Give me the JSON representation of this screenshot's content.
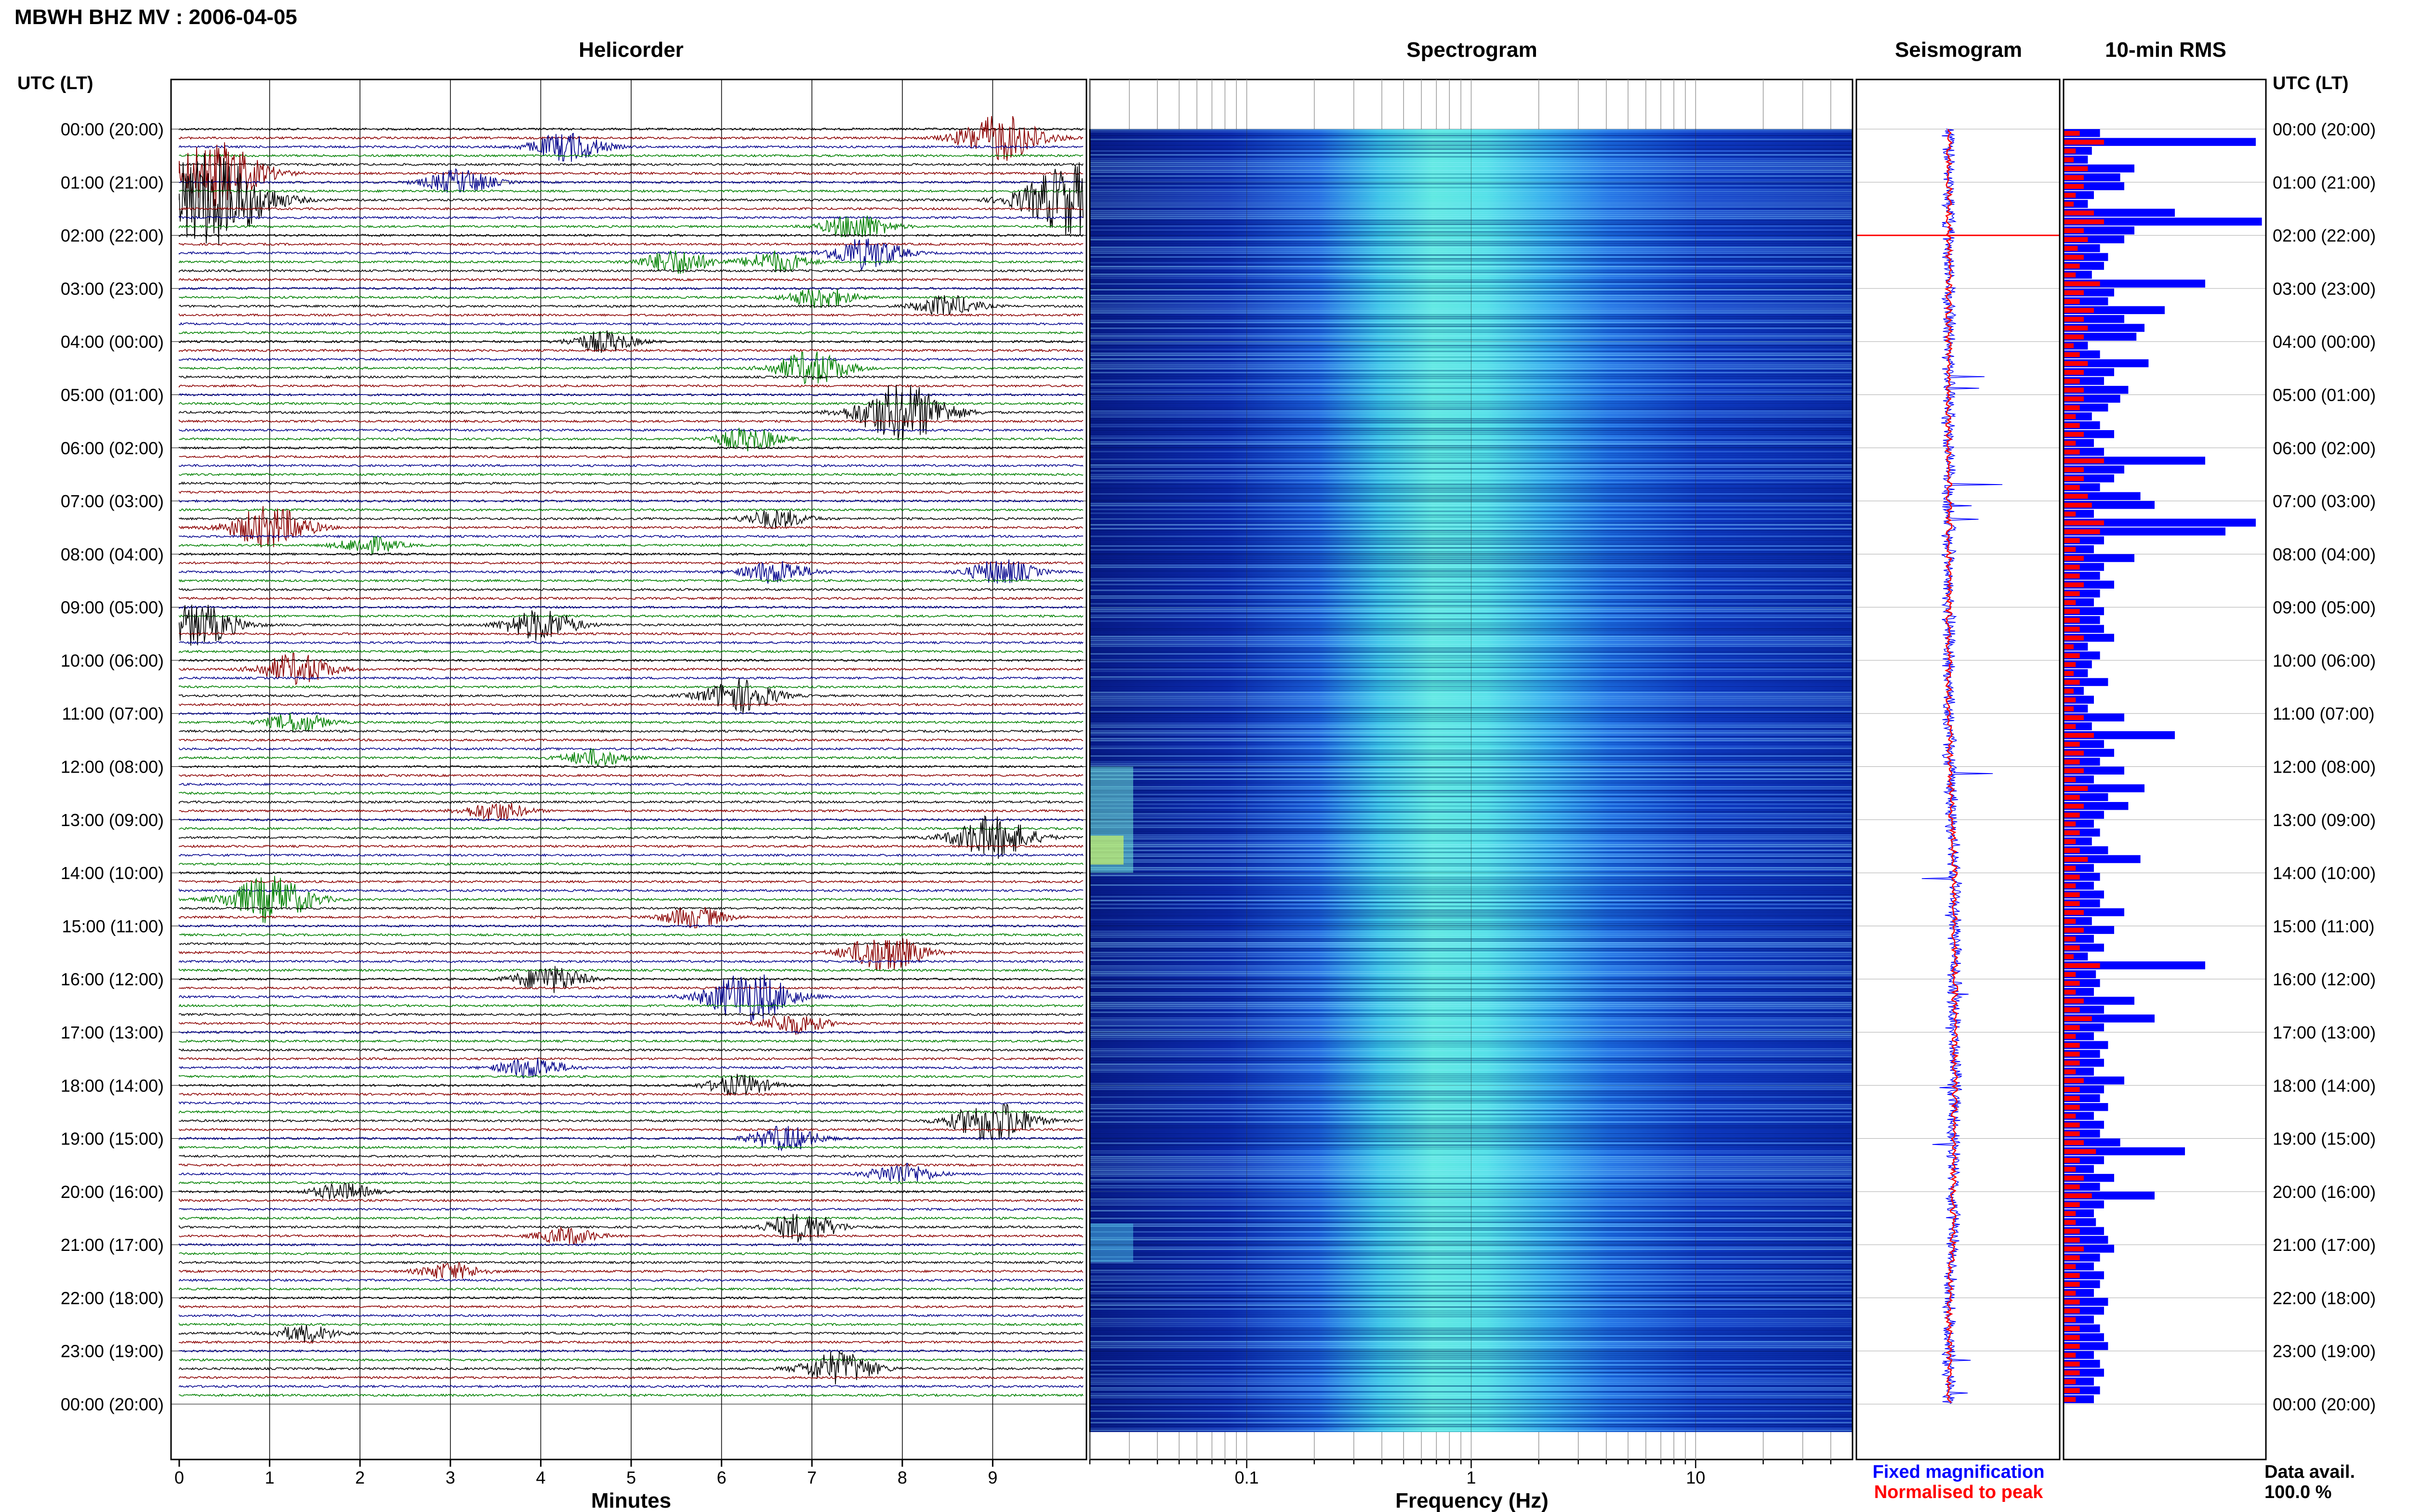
{
  "header": {
    "title": "MBWH BHZ MV : 2006-04-05",
    "utc_label_left": "UTC (LT)",
    "utc_label_right": "UTC (LT)"
  },
  "panels": {
    "helicorder_title": "Helicorder",
    "spectrogram_title": "Spectrogram",
    "seismogram_title": "Seismogram",
    "rms_title": "10-min RMS"
  },
  "footer": {
    "minutes_label": "Minutes",
    "frequency_label": "Frequency (Hz)",
    "legend_fixed": "Fixed magnification",
    "legend_normalised": "Normalised to peak",
    "data_avail_label": "Data avail.",
    "data_avail_value": "100.0 %"
  },
  "colors": {
    "trace_cycle": [
      "#000000",
      "#8b0000",
      "#00008b",
      "#008000"
    ],
    "rms_fixed": "#0000ff",
    "rms_normalised": "#ff0000",
    "seismogram_fixed": "#0000ff",
    "seismogram_normalised": "#ff0000"
  },
  "chart_data": [
    {
      "type": "helicorder",
      "title": "Helicorder",
      "xlabel": "Minutes",
      "xlim": [
        0,
        10
      ],
      "xticks": [
        "0",
        "1",
        "2",
        "3",
        "4",
        "5",
        "6",
        "7",
        "8",
        "9"
      ],
      "hour_labels": [
        "00:00 (20:00)",
        "01:00 (21:00)",
        "02:00 (22:00)",
        "03:00 (23:00)",
        "04:00 (00:00)",
        "05:00 (01:00)",
        "06:00 (02:00)",
        "07:00 (03:00)",
        "08:00 (04:00)",
        "09:00 (05:00)",
        "10:00 (06:00)",
        "11:00 (07:00)",
        "12:00 (08:00)",
        "13:00 (09:00)",
        "14:00 (10:00)",
        "15:00 (11:00)",
        "16:00 (12:00)",
        "17:00 (13:00)",
        "18:00 (14:00)",
        "19:00 (15:00)",
        "20:00 (16:00)",
        "21:00 (17:00)",
        "22:00 (18:00)",
        "23:00 (19:00)",
        "00:00 (20:00)"
      ],
      "rows": 144,
      "events": [
        {
          "row": 1,
          "minute": 9.1,
          "amp": 2.2
        },
        {
          "row": 2,
          "minute": 4.3,
          "amp": 1.4
        },
        {
          "row": 5,
          "minute": 0.4,
          "amp": 3.0
        },
        {
          "row": 6,
          "minute": 3.1,
          "amp": 1.2
        },
        {
          "row": 8,
          "minute": 0.3,
          "amp": 4.5
        },
        {
          "row": 8,
          "minute": 9.9,
          "amp": 3.5
        },
        {
          "row": 11,
          "minute": 7.5,
          "amp": 1.2
        },
        {
          "row": 14,
          "minute": 7.6,
          "amp": 1.5
        },
        {
          "row": 15,
          "minute": 5.5,
          "amp": 1.2
        },
        {
          "row": 15,
          "minute": 6.6,
          "amp": 1.0
        },
        {
          "row": 19,
          "minute": 7.1,
          "amp": 1.0
        },
        {
          "row": 20,
          "minute": 8.5,
          "amp": 1.0
        },
        {
          "row": 24,
          "minute": 4.7,
          "amp": 1.0
        },
        {
          "row": 27,
          "minute": 7.0,
          "amp": 1.6
        },
        {
          "row": 32,
          "minute": 8.0,
          "amp": 2.8
        },
        {
          "row": 35,
          "minute": 6.3,
          "amp": 1.1
        },
        {
          "row": 44,
          "minute": 6.6,
          "amp": 0.9
        },
        {
          "row": 45,
          "minute": 1.0,
          "amp": 2.0
        },
        {
          "row": 47,
          "minute": 2.1,
          "amp": 0.8
        },
        {
          "row": 50,
          "minute": 6.6,
          "amp": 1.1
        },
        {
          "row": 50,
          "minute": 9.1,
          "amp": 1.2
        },
        {
          "row": 56,
          "minute": 0.2,
          "amp": 2.0
        },
        {
          "row": 56,
          "minute": 4.0,
          "amp": 1.5
        },
        {
          "row": 61,
          "minute": 1.3,
          "amp": 1.5
        },
        {
          "row": 64,
          "minute": 6.2,
          "amp": 1.6
        },
        {
          "row": 67,
          "minute": 1.3,
          "amp": 0.9
        },
        {
          "row": 71,
          "minute": 4.6,
          "amp": 0.8
        },
        {
          "row": 77,
          "minute": 3.5,
          "amp": 0.9
        },
        {
          "row": 80,
          "minute": 9.0,
          "amp": 2.0
        },
        {
          "row": 87,
          "minute": 1.0,
          "amp": 2.2
        },
        {
          "row": 89,
          "minute": 5.7,
          "amp": 1.0
        },
        {
          "row": 93,
          "minute": 7.8,
          "amp": 1.8
        },
        {
          "row": 96,
          "minute": 4.1,
          "amp": 1.3
        },
        {
          "row": 98,
          "minute": 6.3,
          "amp": 2.4
        },
        {
          "row": 101,
          "minute": 6.8,
          "amp": 1.0
        },
        {
          "row": 106,
          "minute": 3.9,
          "amp": 1.0
        },
        {
          "row": 108,
          "minute": 6.2,
          "amp": 1.0
        },
        {
          "row": 112,
          "minute": 9.0,
          "amp": 2.0
        },
        {
          "row": 114,
          "minute": 6.7,
          "amp": 1.2
        },
        {
          "row": 118,
          "minute": 8.0,
          "amp": 1.0
        },
        {
          "row": 120,
          "minute": 1.8,
          "amp": 0.8
        },
        {
          "row": 124,
          "minute": 6.9,
          "amp": 1.4
        },
        {
          "row": 125,
          "minute": 4.3,
          "amp": 0.8
        },
        {
          "row": 129,
          "minute": 3.0,
          "amp": 0.8
        },
        {
          "row": 136,
          "minute": 1.4,
          "amp": 0.8
        },
        {
          "row": 140,
          "minute": 7.3,
          "amp": 1.6
        }
      ]
    },
    {
      "type": "heatmap",
      "title": "Spectrogram",
      "xlabel": "Frequency (Hz)",
      "xscale": "log",
      "xlim": [
        0.02,
        50
      ],
      "xticks": [
        "0.1",
        "1",
        "10"
      ]
    },
    {
      "type": "line",
      "title": "Seismogram",
      "series": [
        {
          "name": "Fixed magnification",
          "color": "#0000ff"
        },
        {
          "name": "Normalised to peak",
          "color": "#ff0000"
        }
      ],
      "baseline_by_hour": [
        0.0,
        0.0,
        0.0,
        0.0,
        0.0,
        0.0,
        0.0,
        0.0,
        0.0,
        0.0,
        0.0,
        0.0,
        0.05,
        0.15,
        0.3,
        0.3,
        0.3,
        0.3,
        0.3,
        0.25,
        0.25,
        0.2,
        0.0,
        0.0,
        0.0
      ]
    },
    {
      "type": "bar",
      "title": "10-min RMS",
      "orientation": "horizontal",
      "series": [
        {
          "name": "Fixed magnification",
          "color": "#0000ff",
          "values": [
            0.18,
            0.95,
            0.14,
            0.12,
            0.35,
            0.28,
            0.3,
            0.15,
            0.12,
            0.55,
            0.98,
            0.35,
            0.3,
            0.18,
            0.22,
            0.2,
            0.14,
            0.7,
            0.25,
            0.22,
            0.5,
            0.3,
            0.4,
            0.36,
            0.12,
            0.18,
            0.42,
            0.25,
            0.2,
            0.32,
            0.28,
            0.22,
            0.14,
            0.18,
            0.25,
            0.15,
            0.2,
            0.7,
            0.3,
            0.25,
            0.18,
            0.38,
            0.45,
            0.15,
            0.95,
            0.8,
            0.2,
            0.15,
            0.35,
            0.2,
            0.18,
            0.25,
            0.18,
            0.15,
            0.2,
            0.18,
            0.2,
            0.25,
            0.12,
            0.18,
            0.14,
            0.12,
            0.22,
            0.1,
            0.15,
            0.12,
            0.3,
            0.14,
            0.55,
            0.2,
            0.25,
            0.18,
            0.3,
            0.15,
            0.4,
            0.22,
            0.32,
            0.2,
            0.15,
            0.18,
            0.14,
            0.22,
            0.38,
            0.15,
            0.18,
            0.15,
            0.2,
            0.18,
            0.3,
            0.14,
            0.25,
            0.15,
            0.2,
            0.12,
            0.7,
            0.16,
            0.18,
            0.15,
            0.35,
            0.2,
            0.45,
            0.2,
            0.15,
            0.22,
            0.18,
            0.2,
            0.15,
            0.3,
            0.2,
            0.18,
            0.22,
            0.15,
            0.2,
            0.18,
            0.28,
            0.6,
            0.2,
            0.15,
            0.25,
            0.18,
            0.45,
            0.2,
            0.15,
            0.16,
            0.2,
            0.22,
            0.25,
            0.18,
            0.15,
            0.2,
            0.18,
            0.15,
            0.22,
            0.2,
            0.15,
            0.18,
            0.2,
            0.22,
            0.15,
            0.18,
            0.2,
            0.15,
            0.18,
            0.15
          ],
          "note_scale": "0-1"
        },
        {
          "name": "Normalised to peak",
          "color": "#ff0000",
          "values": [
            0.08,
            0.2,
            0.06,
            0.05,
            0.12,
            0.1,
            0.1,
            0.06,
            0.05,
            0.15,
            0.2,
            0.1,
            0.12,
            0.07,
            0.1,
            0.08,
            0.06,
            0.18,
            0.1,
            0.08,
            0.15,
            0.1,
            0.12,
            0.1,
            0.05,
            0.08,
            0.12,
            0.1,
            0.08,
            0.1,
            0.1,
            0.08,
            0.06,
            0.08,
            0.1,
            0.06,
            0.08,
            0.2,
            0.1,
            0.1,
            0.08,
            0.12,
            0.14,
            0.06,
            0.2,
            0.18,
            0.08,
            0.06,
            0.1,
            0.08,
            0.08,
            0.1,
            0.08,
            0.06,
            0.08,
            0.08,
            0.08,
            0.1,
            0.05,
            0.08,
            0.06,
            0.05,
            0.08,
            0.05,
            0.06,
            0.05,
            0.1,
            0.06,
            0.15,
            0.08,
            0.1,
            0.08,
            0.1,
            0.06,
            0.12,
            0.08,
            0.1,
            0.08,
            0.06,
            0.08,
            0.06,
            0.08,
            0.12,
            0.06,
            0.08,
            0.06,
            0.08,
            0.08,
            0.1,
            0.06,
            0.1,
            0.06,
            0.08,
            0.05,
            0.18,
            0.06,
            0.08,
            0.06,
            0.1,
            0.08,
            0.14,
            0.08,
            0.06,
            0.08,
            0.08,
            0.08,
            0.06,
            0.1,
            0.08,
            0.08,
            0.08,
            0.06,
            0.08,
            0.08,
            0.1,
            0.16,
            0.08,
            0.06,
            0.1,
            0.08,
            0.14,
            0.08,
            0.06,
            0.06,
            0.08,
            0.08,
            0.1,
            0.08,
            0.06,
            0.08,
            0.08,
            0.06,
            0.08,
            0.08,
            0.06,
            0.08,
            0.08,
            0.08,
            0.06,
            0.08,
            0.08,
            0.06,
            0.08,
            0.06
          ]
        }
      ]
    }
  ]
}
